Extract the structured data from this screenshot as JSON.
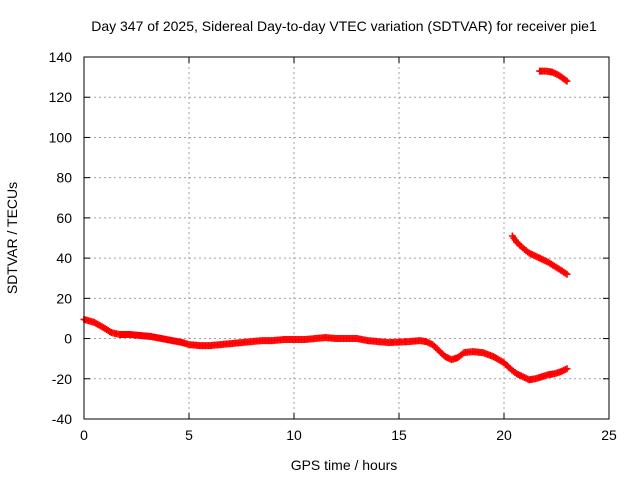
{
  "chart_data": {
    "type": "scatter",
    "title": "Day 347 of 2025, Sidereal Day-to-day VTEC variation (SDTVAR) for receiver pie1",
    "xlabel": "GPS time / hours",
    "ylabel": "SDTVAR / TECUs",
    "xlim": [
      0,
      25
    ],
    "ylim": [
      -40,
      140
    ],
    "xticks": [
      "0",
      "5",
      "10",
      "15",
      "20",
      "25"
    ],
    "yticks": [
      "-40",
      "-20",
      "0",
      "20",
      "40",
      "60",
      "80",
      "100",
      "120",
      "140"
    ],
    "grid": true,
    "marker": "+",
    "color": "#ff0000",
    "series": [
      {
        "name": "SDTVAR main",
        "points": [
          [
            0.0,
            9.5
          ],
          [
            0.5,
            8.0
          ],
          [
            1.0,
            5.0
          ],
          [
            1.3,
            3.0
          ],
          [
            1.7,
            2.0
          ],
          [
            2.2,
            2.0
          ],
          [
            2.7,
            1.5
          ],
          [
            3.2,
            1.0
          ],
          [
            3.7,
            0.0
          ],
          [
            4.2,
            -1.0
          ],
          [
            4.7,
            -2.0
          ],
          [
            5.0,
            -3.0
          ],
          [
            5.5,
            -3.5
          ],
          [
            6.0,
            -3.5
          ],
          [
            6.5,
            -3.0
          ],
          [
            7.0,
            -2.5
          ],
          [
            7.5,
            -2.0
          ],
          [
            8.0,
            -1.5
          ],
          [
            8.5,
            -1.0
          ],
          [
            9.0,
            -1.0
          ],
          [
            9.5,
            -0.5
          ],
          [
            10.0,
            -0.5
          ],
          [
            10.5,
            -0.5
          ],
          [
            11.0,
            0.0
          ],
          [
            11.5,
            0.5
          ],
          [
            12.0,
            0.0
          ],
          [
            12.5,
            0.0
          ],
          [
            13.0,
            0.0
          ],
          [
            13.5,
            -1.0
          ],
          [
            14.0,
            -1.5
          ],
          [
            14.5,
            -2.0
          ],
          [
            15.5,
            -1.5
          ],
          [
            16.0,
            -1.0
          ],
          [
            16.3,
            -1.5
          ],
          [
            16.6,
            -3.0
          ],
          [
            16.9,
            -6.0
          ],
          [
            17.2,
            -9.0
          ],
          [
            17.5,
            -10.5
          ],
          [
            17.8,
            -9.5
          ],
          [
            18.1,
            -7.0
          ],
          [
            18.5,
            -6.5
          ],
          [
            19.0,
            -7.0
          ],
          [
            19.5,
            -9.0
          ],
          [
            20.0,
            -12.0
          ],
          [
            20.3,
            -15.0
          ],
          [
            20.6,
            -17.5
          ],
          [
            20.9,
            -19.0
          ],
          [
            21.2,
            -20.5
          ],
          [
            21.5,
            -20.0
          ],
          [
            21.8,
            -19.0
          ],
          [
            22.1,
            -18.0
          ],
          [
            22.4,
            -17.5
          ],
          [
            22.7,
            -16.5
          ],
          [
            23.0,
            -15.0
          ]
        ]
      },
      {
        "name": "SDTVAR upper arc",
        "points": [
          [
            20.4,
            51.0
          ],
          [
            20.6,
            48.0
          ],
          [
            20.9,
            45.0
          ],
          [
            21.2,
            42.5
          ],
          [
            21.5,
            41.0
          ],
          [
            21.8,
            39.5
          ],
          [
            22.1,
            38.0
          ],
          [
            22.4,
            36.0
          ],
          [
            22.7,
            34.0
          ],
          [
            23.0,
            32.0
          ]
        ]
      },
      {
        "name": "SDTVAR top arc",
        "points": [
          [
            21.7,
            133.0
          ],
          [
            22.0,
            133.0
          ],
          [
            22.3,
            132.5
          ],
          [
            22.6,
            131.0
          ],
          [
            22.8,
            129.5
          ],
          [
            23.0,
            128.0
          ]
        ]
      }
    ]
  }
}
